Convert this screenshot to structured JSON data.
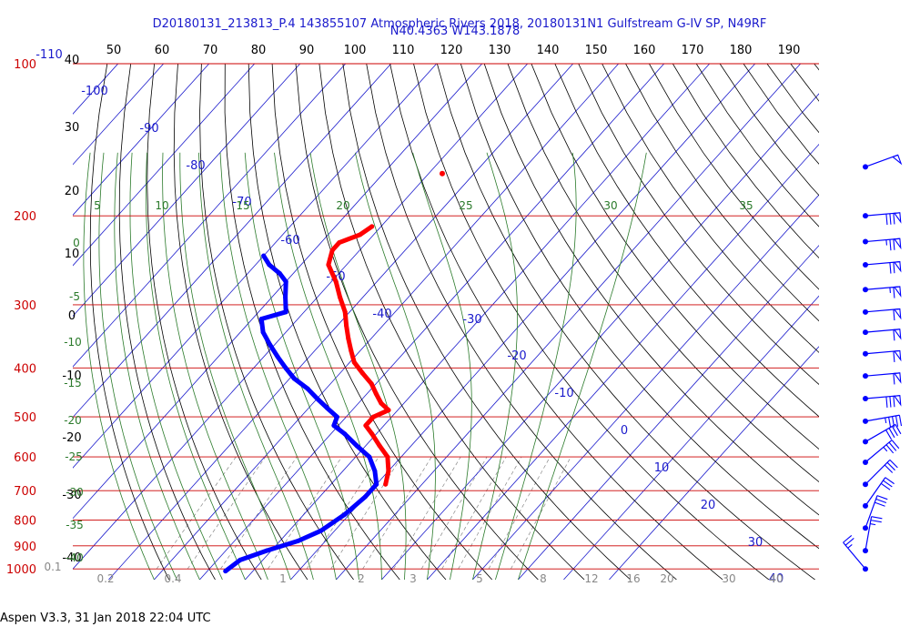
{
  "header": {
    "title_line1": "D20180131_213813_P.4 143855107 Atmospheric Rivers 2018, 20180131N1 Gulfstream G-IV SP, N49RF",
    "title_line2": "N40.4363 W143.1878"
  },
  "footer": {
    "text": "Aspen V3.3, 31 Jan 2018  22:04 UTC"
  },
  "colors": {
    "temperature": "#ff0000",
    "dewpoint": "#0000ff",
    "isobar": "#cc0000",
    "isotherm": "#1a1acc",
    "dry_adiabat": "#000000",
    "moist_adiabat": "#2a7a2a",
    "mixing_ratio": "#888888"
  },
  "chart_data": {
    "type": "skew-t",
    "top_scale_labels": [
      "50",
      "60",
      "70",
      "80",
      "90",
      "100",
      "110",
      "120",
      "130",
      "140",
      "150",
      "160",
      "170",
      "180",
      "190"
    ],
    "pressure_labels": [
      {
        "value": "100",
        "p": 100
      },
      {
        "value": "200",
        "p": 200
      },
      {
        "value": "300",
        "p": 300
      },
      {
        "value": "400",
        "p": 400
      },
      {
        "value": "500",
        "p": 500
      },
      {
        "value": "600",
        "p": 600
      },
      {
        "value": "700",
        "p": 700
      },
      {
        "value": "800",
        "p": 800
      },
      {
        "value": "900",
        "p": 900
      },
      {
        "value": "1000",
        "p": 1000
      }
    ],
    "altitude_labels": [
      "40",
      "30",
      "20",
      "10",
      "0",
      "-10",
      "-20",
      "-30",
      "-40"
    ],
    "isotherm_labels": [
      "-110",
      "-100",
      "-90",
      "-80",
      "-70",
      "-60",
      "-50",
      "-40",
      "-30",
      "-20",
      "-10",
      "0",
      "10",
      "20",
      "30",
      "40"
    ],
    "dry_adiabat_labels": [
      "0",
      "-5",
      "-10",
      "-15",
      "-20",
      "-25",
      "-30",
      "-35",
      "-40"
    ],
    "moist_adiabat_labels": [
      "5",
      "10",
      "15",
      "20",
      "25",
      "30",
      "35"
    ],
    "mixing_ratio_labels": [
      "0.1",
      "0.2",
      "0.4",
      "1",
      "2",
      "3",
      "5",
      "8",
      "12",
      "16",
      "20",
      "30",
      "40"
    ],
    "temperature_profile": [
      {
        "p": 210,
        "t": -62
      },
      {
        "p": 218,
        "t": -63
      },
      {
        "p": 226,
        "t": -66
      },
      {
        "p": 234,
        "t": -66
      },
      {
        "p": 250,
        "t": -64
      },
      {
        "p": 270,
        "t": -59
      },
      {
        "p": 290,
        "t": -55
      },
      {
        "p": 310,
        "t": -51
      },
      {
        "p": 330,
        "t": -48
      },
      {
        "p": 350,
        "t": -45
      },
      {
        "p": 370,
        "t": -42
      },
      {
        "p": 390,
        "t": -39
      },
      {
        "p": 410,
        "t": -35
      },
      {
        "p": 430,
        "t": -31
      },
      {
        "p": 450,
        "t": -28
      },
      {
        "p": 470,
        "t": -25
      },
      {
        "p": 485,
        "t": -22
      },
      {
        "p": 500,
        "t": -24
      },
      {
        "p": 520,
        "t": -24
      },
      {
        "p": 540,
        "t": -21
      },
      {
        "p": 570,
        "t": -17
      },
      {
        "p": 600,
        "t": -13
      },
      {
        "p": 640,
        "t": -10
      },
      {
        "p": 680,
        "t": -8
      }
    ],
    "dewpoint_profile": [
      {
        "p": 240,
        "t": -80
      },
      {
        "p": 250,
        "t": -77
      },
      {
        "p": 260,
        "t": -73
      },
      {
        "p": 270,
        "t": -70
      },
      {
        "p": 290,
        "t": -67
      },
      {
        "p": 310,
        "t": -64
      },
      {
        "p": 320,
        "t": -68
      },
      {
        "p": 340,
        "t": -65
      },
      {
        "p": 360,
        "t": -61
      },
      {
        "p": 380,
        "t": -57
      },
      {
        "p": 400,
        "t": -53
      },
      {
        "p": 420,
        "t": -49
      },
      {
        "p": 440,
        "t": -44
      },
      {
        "p": 460,
        "t": -40
      },
      {
        "p": 480,
        "t": -36
      },
      {
        "p": 500,
        "t": -32
      },
      {
        "p": 520,
        "t": -31
      },
      {
        "p": 540,
        "t": -27
      },
      {
        "p": 570,
        "t": -22
      },
      {
        "p": 600,
        "t": -17
      },
      {
        "p": 640,
        "t": -13
      },
      {
        "p": 680,
        "t": -10
      },
      {
        "p": 720,
        "t": -10
      },
      {
        "p": 780,
        "t": -11
      },
      {
        "p": 840,
        "t": -13
      },
      {
        "p": 880,
        "t": -16
      },
      {
        "p": 920,
        "t": -21
      },
      {
        "p": 960,
        "t": -25
      },
      {
        "p": 1010,
        "t": -26
      }
    ],
    "isolated_point": {
      "p": 165,
      "t": -57
    },
    "wind_barbs": [
      {
        "p": 160,
        "dir": 250,
        "speed": 50
      },
      {
        "p": 200,
        "dir": 265,
        "speed": 80
      },
      {
        "p": 225,
        "dir": 265,
        "speed": 75
      },
      {
        "p": 250,
        "dir": 265,
        "speed": 70
      },
      {
        "p": 280,
        "dir": 265,
        "speed": 65
      },
      {
        "p": 310,
        "dir": 265,
        "speed": 60
      },
      {
        "p": 340,
        "dir": 265,
        "speed": 60
      },
      {
        "p": 375,
        "dir": 265,
        "speed": 60
      },
      {
        "p": 415,
        "dir": 265,
        "speed": 60
      },
      {
        "p": 460,
        "dir": 265,
        "speed": 80
      },
      {
        "p": 510,
        "dir": 260,
        "speed": 45
      },
      {
        "p": 560,
        "dir": 240,
        "speed": 40
      },
      {
        "p": 615,
        "dir": 230,
        "speed": 35
      },
      {
        "p": 680,
        "dir": 225,
        "speed": 30
      },
      {
        "p": 750,
        "dir": 215,
        "speed": 30
      },
      {
        "p": 830,
        "dir": 200,
        "speed": 30
      },
      {
        "p": 920,
        "dir": 190,
        "speed": 25
      },
      {
        "p": 1000,
        "dir": 140,
        "speed": 25
      }
    ]
  }
}
